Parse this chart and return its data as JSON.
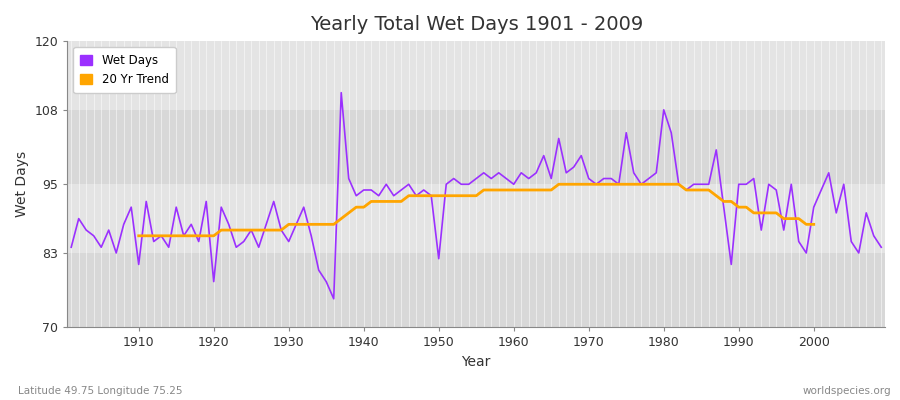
{
  "title": "Yearly Total Wet Days 1901 - 2009",
  "xlabel": "Year",
  "ylabel": "Wet Days",
  "subtitle": "Latitude 49.75 Longitude 75.25",
  "watermark": "worldspecies.org",
  "ylim": [
    70,
    120
  ],
  "yticks": [
    70,
    83,
    95,
    108,
    120
  ],
  "plot_bg_color": "#dcdcdc",
  "fig_bg_color": "#ffffff",
  "wet_days_color": "#9b30ff",
  "trend_color": "#ffa500",
  "years": [
    1901,
    1902,
    1903,
    1904,
    1905,
    1906,
    1907,
    1908,
    1909,
    1910,
    1911,
    1912,
    1913,
    1914,
    1915,
    1916,
    1917,
    1918,
    1919,
    1920,
    1921,
    1922,
    1923,
    1924,
    1925,
    1926,
    1927,
    1928,
    1929,
    1930,
    1931,
    1932,
    1933,
    1934,
    1935,
    1936,
    1937,
    1938,
    1939,
    1940,
    1941,
    1942,
    1943,
    1944,
    1945,
    1946,
    1947,
    1948,
    1949,
    1950,
    1951,
    1952,
    1953,
    1954,
    1955,
    1956,
    1957,
    1958,
    1959,
    1960,
    1961,
    1962,
    1963,
    1964,
    1965,
    1966,
    1967,
    1968,
    1969,
    1970,
    1971,
    1972,
    1973,
    1974,
    1975,
    1976,
    1977,
    1978,
    1979,
    1980,
    1981,
    1982,
    1983,
    1984,
    1985,
    1986,
    1987,
    1988,
    1989,
    1990,
    1991,
    1992,
    1993,
    1994,
    1995,
    1996,
    1997,
    1998,
    1999,
    2000,
    2001,
    2002,
    2003,
    2004,
    2005,
    2006,
    2007,
    2008,
    2009
  ],
  "wet_days": [
    84,
    89,
    87,
    86,
    84,
    87,
    83,
    88,
    91,
    81,
    92,
    85,
    86,
    84,
    91,
    86,
    88,
    85,
    92,
    78,
    91,
    88,
    84,
    85,
    87,
    84,
    88,
    92,
    87,
    85,
    88,
    91,
    86,
    80,
    78,
    75,
    111,
    96,
    93,
    94,
    94,
    93,
    95,
    93,
    94,
    95,
    93,
    94,
    93,
    82,
    95,
    96,
    95,
    95,
    96,
    97,
    96,
    97,
    96,
    95,
    97,
    96,
    97,
    100,
    96,
    103,
    97,
    98,
    100,
    96,
    95,
    96,
    96,
    95,
    104,
    97,
    95,
    96,
    97,
    108,
    104,
    95,
    94,
    95,
    95,
    95,
    101,
    91,
    81,
    95,
    95,
    96,
    87,
    95,
    94,
    87,
    95,
    85,
    83,
    91,
    94,
    97,
    90,
    95,
    85,
    83,
    90,
    86,
    84
  ],
  "trend_years": [
    1910,
    1911,
    1912,
    1913,
    1914,
    1915,
    1916,
    1917,
    1918,
    1919,
    1920,
    1921,
    1922,
    1923,
    1924,
    1925,
    1926,
    1927,
    1928,
    1929,
    1930,
    1931,
    1932,
    1933,
    1934,
    1935,
    1936,
    1937,
    1938,
    1939,
    1940,
    1941,
    1942,
    1943,
    1944,
    1945,
    1946,
    1947,
    1948,
    1949,
    1950,
    1951,
    1952,
    1953,
    1954,
    1955,
    1956,
    1957,
    1958,
    1959,
    1960,
    1961,
    1962,
    1963,
    1964,
    1965,
    1966,
    1967,
    1968,
    1969,
    1970,
    1971,
    1972,
    1973,
    1974,
    1975,
    1976,
    1977,
    1978,
    1979,
    1980,
    1981,
    1982,
    1983,
    1984,
    1985,
    1986,
    1987,
    1988,
    1989,
    1990,
    1991,
    1992,
    1993,
    1994,
    1995,
    1996,
    1997,
    1998,
    1999,
    2000
  ],
  "trend_values": [
    86,
    86,
    86,
    86,
    86,
    86,
    86,
    86,
    86,
    86,
    86,
    87,
    87,
    87,
    87,
    87,
    87,
    87,
    87,
    87,
    88,
    88,
    88,
    88,
    88,
    88,
    88,
    89,
    90,
    91,
    91,
    92,
    92,
    92,
    92,
    92,
    93,
    93,
    93,
    93,
    93,
    93,
    93,
    93,
    93,
    93,
    94,
    94,
    94,
    94,
    94,
    94,
    94,
    94,
    94,
    94,
    95,
    95,
    95,
    95,
    95,
    95,
    95,
    95,
    95,
    95,
    95,
    95,
    95,
    95,
    95,
    95,
    95,
    94,
    94,
    94,
    94,
    93,
    92,
    92,
    91,
    91,
    90,
    90,
    90,
    90,
    89,
    89,
    89,
    88,
    88
  ],
  "band_colors": [
    "#d8d8d8",
    "#e4e4e4"
  ]
}
